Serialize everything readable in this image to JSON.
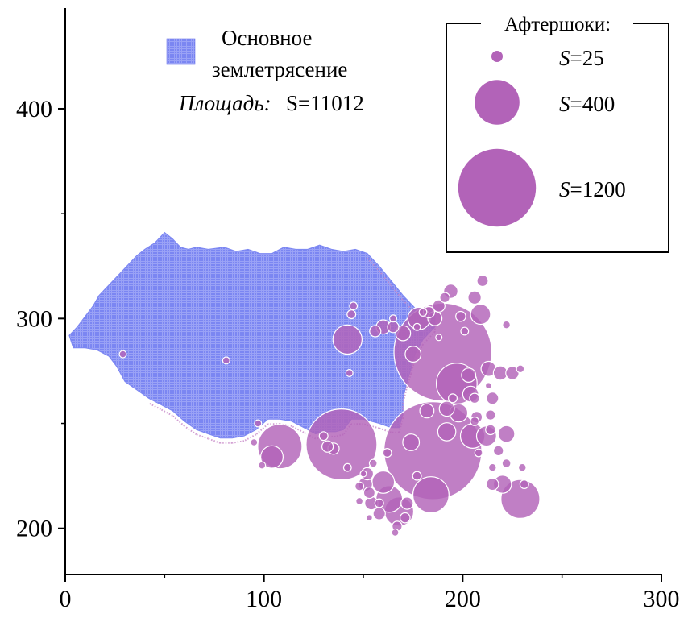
{
  "chart_data": {
    "type": "scatter",
    "title": "",
    "xlabel": "",
    "ylabel": "",
    "xlim": [
      0,
      300
    ],
    "ylim": [
      178,
      448
    ],
    "xticks": [
      0,
      100,
      200,
      300
    ],
    "yticks": [
      200,
      300,
      400
    ],
    "xtick_labels": [
      "0",
      "100",
      "200",
      "300"
    ],
    "ytick_labels": [
      "200",
      "300",
      "400"
    ],
    "grid": false,
    "colors": {
      "mainshock": "#7b86f2",
      "aftershock_fill": "#b263b8",
      "aftershock_stroke": "#ffffff",
      "axis": "#000000"
    },
    "mainshock": {
      "label_line1": "Основное",
      "label_line2": "землетрясение",
      "area_label": "Площадь:",
      "area_value": "S=11012",
      "outline": [
        [
          2,
          292
        ],
        [
          6,
          296
        ],
        [
          10,
          301
        ],
        [
          14,
          306
        ],
        [
          17,
          311
        ],
        [
          20,
          314
        ],
        [
          24,
          318
        ],
        [
          27,
          321
        ],
        [
          30,
          324
        ],
        [
          33,
          327
        ],
        [
          36,
          330
        ],
        [
          40,
          333
        ],
        [
          45,
          336
        ],
        [
          50,
          341
        ],
        [
          54,
          338
        ],
        [
          58,
          334
        ],
        [
          62,
          333
        ],
        [
          66,
          334
        ],
        [
          72,
          333
        ],
        [
          80,
          334
        ],
        [
          86,
          332
        ],
        [
          92,
          333
        ],
        [
          98,
          331
        ],
        [
          104,
          331
        ],
        [
          110,
          334
        ],
        [
          116,
          333
        ],
        [
          122,
          333
        ],
        [
          128,
          335
        ],
        [
          134,
          333
        ],
        [
          140,
          332
        ],
        [
          146,
          333
        ],
        [
          152,
          331
        ],
        [
          158,
          325
        ],
        [
          164,
          318
        ],
        [
          170,
          311
        ],
        [
          176,
          305
        ],
        [
          182,
          304
        ],
        [
          186,
          303
        ],
        [
          186,
          296
        ],
        [
          180,
          290
        ],
        [
          176,
          283
        ],
        [
          174,
          276
        ],
        [
          172,
          270
        ],
        [
          170,
          262
        ],
        [
          170,
          255
        ],
        [
          168,
          248
        ],
        [
          164,
          248
        ],
        [
          158,
          250
        ],
        [
          150,
          252
        ],
        [
          144,
          252
        ],
        [
          140,
          247
        ],
        [
          136,
          246
        ],
        [
          130,
          246
        ],
        [
          126,
          245
        ],
        [
          120,
          248
        ],
        [
          114,
          251
        ],
        [
          108,
          252
        ],
        [
          102,
          252
        ],
        [
          96,
          247
        ],
        [
          90,
          244
        ],
        [
          84,
          243
        ],
        [
          78,
          243
        ],
        [
          72,
          245
        ],
        [
          66,
          247
        ],
        [
          60,
          251
        ],
        [
          54,
          256
        ],
        [
          48,
          259
        ],
        [
          42,
          262
        ],
        [
          36,
          266
        ],
        [
          30,
          270
        ],
        [
          26,
          277
        ],
        [
          22,
          282
        ],
        [
          16,
          285
        ],
        [
          10,
          286
        ],
        [
          4,
          286
        ]
      ]
    },
    "aftershock_legend": {
      "title": "Афтершоки:",
      "entries": [
        {
          "S": 25,
          "label_prefix": "S",
          "label_suffix": "=25"
        },
        {
          "S": 400,
          "label_prefix": "S",
          "label_suffix": "=400"
        },
        {
          "S": 1200,
          "label_prefix": "S",
          "label_suffix": "=1200"
        }
      ]
    },
    "aftershocks": [
      {
        "x": 190,
        "y": 284,
        "S": 1900
      },
      {
        "x": 185,
        "y": 237,
        "S": 1900
      },
      {
        "x": 139,
        "y": 240,
        "S": 1000
      },
      {
        "x": 108,
        "y": 239,
        "S": 390
      },
      {
        "x": 197,
        "y": 269,
        "S": 330
      },
      {
        "x": 229,
        "y": 214,
        "S": 300
      },
      {
        "x": 184,
        "y": 216,
        "S": 260
      },
      {
        "x": 142,
        "y": 290,
        "S": 170
      },
      {
        "x": 168,
        "y": 208,
        "S": 170
      },
      {
        "x": 163,
        "y": 214,
        "S": 140
      },
      {
        "x": 205,
        "y": 244,
        "S": 120
      },
      {
        "x": 104,
        "y": 234,
        "S": 100
      },
      {
        "x": 160,
        "y": 222,
        "S": 100
      },
      {
        "x": 178,
        "y": 300,
        "S": 100
      },
      {
        "x": 212,
        "y": 244,
        "S": 80
      },
      {
        "x": 209,
        "y": 302,
        "S": 80
      },
      {
        "x": 198,
        "y": 255,
        "S": 65
      },
      {
        "x": 192,
        "y": 246,
        "S": 65
      },
      {
        "x": 220,
        "y": 221,
        "S": 65
      },
      {
        "x": 222,
        "y": 245,
        "S": 55
      },
      {
        "x": 174,
        "y": 241,
        "S": 55
      },
      {
        "x": 175,
        "y": 283,
        "S": 50
      },
      {
        "x": 204,
        "y": 264,
        "S": 50
      },
      {
        "x": 170,
        "y": 293,
        "S": 45
      },
      {
        "x": 213,
        "y": 276,
        "S": 45
      },
      {
        "x": 192,
        "y": 257,
        "S": 45
      },
      {
        "x": 203,
        "y": 273,
        "S": 40
      },
      {
        "x": 186,
        "y": 300,
        "S": 40
      },
      {
        "x": 182,
        "y": 256,
        "S": 40
      },
      {
        "x": 151,
        "y": 221,
        "S": 40
      },
      {
        "x": 160,
        "y": 296,
        "S": 40
      },
      {
        "x": 194,
        "y": 313,
        "S": 40
      },
      {
        "x": 219,
        "y": 274,
        "S": 40
      },
      {
        "x": 225,
        "y": 274,
        "S": 35
      },
      {
        "x": 154,
        "y": 212,
        "S": 35
      },
      {
        "x": 206,
        "y": 310,
        "S": 35
      },
      {
        "x": 172,
        "y": 212,
        "S": 30
      },
      {
        "x": 152,
        "y": 226,
        "S": 30
      },
      {
        "x": 215,
        "y": 221,
        "S": 30
      },
      {
        "x": 158,
        "y": 207,
        "S": 30
      },
      {
        "x": 215,
        "y": 262,
        "S": 30
      },
      {
        "x": 188,
        "y": 306,
        "S": 30
      },
      {
        "x": 207,
        "y": 253,
        "S": 25
      },
      {
        "x": 165,
        "y": 296,
        "S": 25
      },
      {
        "x": 135,
        "y": 238,
        "S": 25
      },
      {
        "x": 132,
        "y": 239,
        "S": 25
      },
      {
        "x": 153,
        "y": 217,
        "S": 25
      },
      {
        "x": 156,
        "y": 294,
        "S": 25
      },
      {
        "x": 183,
        "y": 303,
        "S": 25
      },
      {
        "x": 210,
        "y": 318,
        "S": 25
      },
      {
        "x": 167,
        "y": 201,
        "S": 20
      },
      {
        "x": 171,
        "y": 205,
        "S": 20
      },
      {
        "x": 206,
        "y": 262,
        "S": 20
      },
      {
        "x": 214,
        "y": 254,
        "S": 20
      },
      {
        "x": 199,
        "y": 301,
        "S": 20
      },
      {
        "x": 191,
        "y": 310,
        "S": 20
      },
      {
        "x": 214,
        "y": 247,
        "S": 20
      },
      {
        "x": 218,
        "y": 237,
        "S": 20
      },
      {
        "x": 222,
        "y": 231,
        "S": 15
      },
      {
        "x": 231,
        "y": 221,
        "S": 15
      },
      {
        "x": 148,
        "y": 220,
        "S": 15
      },
      {
        "x": 162,
        "y": 236,
        "S": 15
      },
      {
        "x": 195,
        "y": 262,
        "S": 15
      },
      {
        "x": 206,
        "y": 251,
        "S": 15
      },
      {
        "x": 130,
        "y": 244,
        "S": 15
      },
      {
        "x": 158,
        "y": 212,
        "S": 15
      },
      {
        "x": 177,
        "y": 225,
        "S": 15
      },
      {
        "x": 144,
        "y": 302,
        "S": 15
      },
      {
        "x": 145,
        "y": 306,
        "S": 12
      },
      {
        "x": 222,
        "y": 297,
        "S": 12
      },
      {
        "x": 180,
        "y": 303,
        "S": 12
      },
      {
        "x": 201,
        "y": 294,
        "S": 12
      },
      {
        "x": 215,
        "y": 229,
        "S": 12
      },
      {
        "x": 208,
        "y": 236,
        "S": 12
      },
      {
        "x": 155,
        "y": 231,
        "S": 12
      },
      {
        "x": 142,
        "y": 229,
        "S": 12
      },
      {
        "x": 229,
        "y": 276,
        "S": 12
      },
      {
        "x": 230,
        "y": 229,
        "S": 12
      },
      {
        "x": 166,
        "y": 198,
        "S": 10
      },
      {
        "x": 177,
        "y": 296,
        "S": 10
      },
      {
        "x": 99,
        "y": 230,
        "S": 10
      },
      {
        "x": 95,
        "y": 241,
        "S": 10
      },
      {
        "x": 148,
        "y": 213,
        "S": 10
      },
      {
        "x": 165,
        "y": 300,
        "S": 10
      },
      {
        "x": 81,
        "y": 280,
        "S": 10
      },
      {
        "x": 29,
        "y": 283,
        "S": 10
      },
      {
        "x": 97,
        "y": 250,
        "S": 10
      },
      {
        "x": 143,
        "y": 274,
        "S": 10
      },
      {
        "x": 150,
        "y": 226,
        "S": 8
      },
      {
        "x": 153,
        "y": 205,
        "S": 8
      },
      {
        "x": 213,
        "y": 268,
        "S": 8
      },
      {
        "x": 188,
        "y": 291,
        "S": 8
      }
    ]
  }
}
